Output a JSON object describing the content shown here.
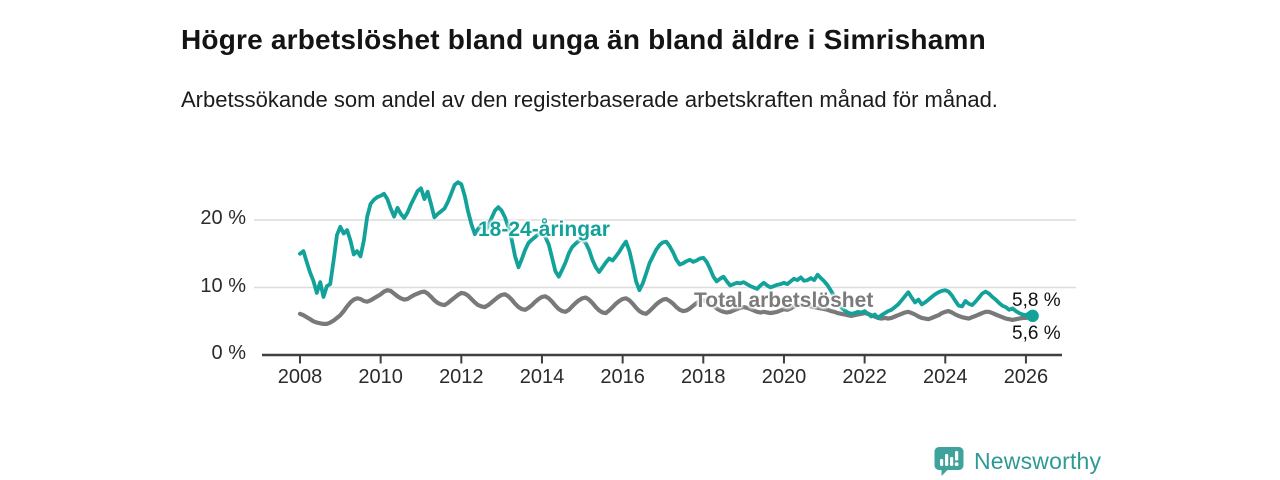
{
  "title": "Högre arbetslöshet bland unga än bland äldre i Simrishamn",
  "subtitle": "Arbetssökande som andel av den registerbaserade arbetskraften månad för månad.",
  "branding": {
    "name": "Newsworthy",
    "icon": "newsworthy-pin-barchart-icon",
    "color": "#2e9a94",
    "icon_color": "#3fa39c"
  },
  "chart_data": {
    "type": "line",
    "title": "Högre arbetslöshet bland unga än bland äldre i Simrishamn",
    "xlabel": "",
    "ylabel": "Arbetssökande som andel av den registerbaserade arbetskraften",
    "x_start_year": 2008,
    "x_points_per_year": 12,
    "grid": "horizontal-only",
    "legend_position": "inline-labels",
    "x_axis": {
      "tick_years": [
        2008,
        2010,
        2012,
        2014,
        2016,
        2018,
        2020,
        2022,
        2024,
        2026
      ]
    },
    "y_axis": {
      "ticks": [
        {
          "value": 0,
          "label": "0 %"
        },
        {
          "value": 10,
          "label": "10 %"
        },
        {
          "value": 20,
          "label": "20 %"
        }
      ],
      "gridlines": [
        10,
        20
      ],
      "range": [
        0,
        27.5
      ]
    },
    "series": [
      {
        "name": "Total arbetslöshet",
        "color": "#797979",
        "line_width": 4.2,
        "end_dot_radius": 4.5,
        "end_label": "5,6 %",
        "end_value": 5.6,
        "values": [
          6.1,
          5.9,
          5.6,
          5.3,
          5.0,
          4.8,
          4.7,
          4.6,
          4.6,
          4.8,
          5.1,
          5.5,
          5.9,
          6.5,
          7.2,
          7.8,
          8.2,
          8.4,
          8.3,
          8.0,
          7.9,
          8.1,
          8.4,
          8.7,
          9.0,
          9.4,
          9.6,
          9.5,
          9.1,
          8.7,
          8.4,
          8.2,
          8.3,
          8.6,
          8.9,
          9.1,
          9.3,
          9.4,
          9.1,
          8.6,
          8.1,
          7.7,
          7.5,
          7.4,
          7.7,
          8.1,
          8.5,
          8.9,
          9.2,
          9.1,
          8.8,
          8.3,
          7.8,
          7.4,
          7.2,
          7.1,
          7.4,
          7.8,
          8.2,
          8.6,
          8.9,
          9.0,
          8.7,
          8.2,
          7.6,
          7.1,
          6.8,
          6.7,
          7.0,
          7.4,
          7.9,
          8.3,
          8.6,
          8.7,
          8.4,
          7.9,
          7.3,
          6.8,
          6.5,
          6.4,
          6.7,
          7.2,
          7.7,
          8.1,
          8.4,
          8.5,
          8.2,
          7.7,
          7.1,
          6.6,
          6.3,
          6.2,
          6.6,
          7.1,
          7.6,
          8.0,
          8.3,
          8.4,
          8.1,
          7.6,
          7.0,
          6.5,
          6.2,
          6.1,
          6.5,
          7.0,
          7.5,
          7.9,
          8.2,
          8.3,
          8.0,
          7.6,
          7.1,
          6.7,
          6.5,
          6.6,
          6.9,
          7.3,
          7.7,
          8.0,
          8.1,
          8.0,
          7.7,
          7.3,
          6.9,
          6.6,
          6.4,
          6.3,
          6.4,
          6.6,
          6.8,
          7.0,
          7.1,
          7.0,
          6.8,
          6.6,
          6.4,
          6.3,
          6.4,
          6.3,
          6.2,
          6.3,
          6.4,
          6.6,
          6.8,
          6.7,
          6.9,
          7.2,
          7.3,
          7.4,
          7.5,
          7.4,
          7.2,
          7.1,
          7.0,
          6.9,
          6.8,
          6.7,
          6.5,
          6.4,
          6.2,
          6.1,
          6.0,
          5.9,
          5.8,
          5.9,
          6.0,
          6.1,
          6.2,
          6.1,
          5.9,
          5.7,
          5.5,
          5.4,
          5.5,
          5.4,
          5.5,
          5.7,
          5.9,
          6.1,
          6.3,
          6.4,
          6.2,
          6.0,
          5.7,
          5.5,
          5.4,
          5.3,
          5.5,
          5.7,
          5.9,
          6.2,
          6.4,
          6.5,
          6.3,
          6.0,
          5.8,
          5.6,
          5.5,
          5.4,
          5.6,
          5.8,
          6.0,
          6.2,
          6.4,
          6.4,
          6.2,
          6.0,
          5.8,
          5.6,
          5.4,
          5.3,
          5.2,
          5.3,
          5.4,
          5.5,
          5.5,
          5.6,
          5.6
        ]
      },
      {
        "name": "18-24-åringar",
        "color": "#12a29a",
        "line_width": 3.8,
        "end_dot_radius": 6.2,
        "end_label": "5,8 %",
        "end_value": 5.8,
        "values": [
          15.0,
          15.4,
          13.8,
          12.2,
          11.0,
          9.2,
          10.8,
          8.6,
          10.2,
          10.5,
          14.0,
          17.8,
          19.0,
          18.0,
          18.5,
          17.0,
          14.9,
          15.4,
          14.6,
          17.0,
          20.5,
          22.4,
          23.0,
          23.4,
          23.6,
          23.9,
          23.1,
          21.7,
          20.5,
          21.8,
          20.9,
          20.3,
          21.1,
          22.3,
          23.3,
          24.3,
          24.7,
          23.1,
          24.2,
          22.3,
          20.4,
          20.9,
          21.3,
          21.7,
          22.7,
          23.9,
          25.2,
          25.6,
          25.3,
          23.6,
          21.3,
          19.4,
          17.9,
          18.7,
          19.3,
          18.3,
          19.1,
          20.3,
          21.4,
          21.9,
          21.4,
          20.4,
          18.9,
          17.1,
          14.6,
          13.0,
          14.2,
          15.6,
          16.6,
          17.1,
          17.5,
          17.9,
          18.1,
          17.5,
          16.4,
          14.4,
          12.4,
          11.6,
          12.6,
          13.7,
          15.1,
          16.0,
          16.5,
          16.9,
          17.1,
          16.6,
          15.6,
          14.1,
          13.0,
          12.3,
          13.0,
          13.7,
          14.3,
          14.0,
          14.6,
          15.3,
          16.1,
          16.8,
          15.4,
          13.3,
          10.9,
          9.6,
          10.6,
          12.1,
          13.6,
          14.6,
          15.6,
          16.3,
          16.7,
          16.8,
          16.1,
          15.2,
          14.1,
          13.4,
          13.6,
          13.9,
          14.1,
          13.8,
          14.0,
          14.3,
          14.4,
          13.8,
          12.8,
          11.6,
          10.9,
          11.3,
          11.6,
          10.9,
          10.3,
          10.5,
          10.7,
          10.6,
          10.8,
          10.5,
          10.2,
          10.0,
          9.8,
          10.3,
          10.7,
          10.3,
          10.0,
          10.2,
          10.4,
          10.5,
          10.7,
          10.5,
          10.9,
          11.3,
          11.1,
          11.5,
          11.0,
          11.1,
          11.4,
          11.1,
          11.9,
          11.4,
          10.9,
          10.3,
          9.5,
          8.7,
          7.9,
          7.1,
          6.6,
          6.3,
          6.1,
          6.2,
          6.4,
          6.3,
          6.5,
          6.1,
          5.7,
          6.0,
          5.5,
          5.9,
          6.2,
          6.5,
          6.7,
          7.1,
          7.5,
          8.1,
          8.7,
          9.3,
          8.5,
          7.8,
          8.2,
          7.5,
          7.8,
          8.2,
          8.6,
          9.0,
          9.3,
          9.5,
          9.6,
          9.4,
          8.8,
          8.0,
          7.3,
          7.2,
          8.0,
          7.6,
          7.4,
          7.9,
          8.5,
          9.1,
          9.4,
          9.1,
          8.6,
          8.2,
          7.7,
          7.3,
          7.1,
          6.7,
          6.9,
          6.5,
          6.2,
          6.0,
          5.9,
          6.2,
          5.8
        ]
      }
    ]
  }
}
